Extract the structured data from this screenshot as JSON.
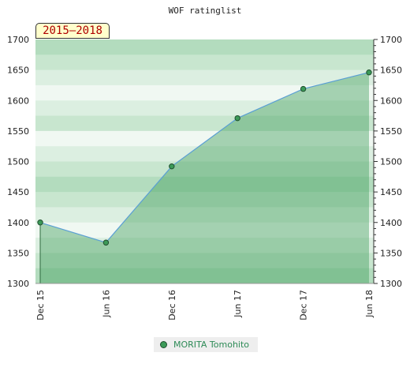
{
  "title": "WOF ratinglist",
  "period": "2015–2018",
  "colors": {
    "line": "#5a9fd4",
    "area": "#3c9a58",
    "marker_fill": "#3c9a58",
    "marker_stroke": "#1f4f2e",
    "badge_bg": "#ffffcc",
    "badge_text": "#b00000"
  },
  "chart_data": {
    "type": "area",
    "title": "WOF ratinglist",
    "x": [
      "Dec 15",
      "Jun 16",
      "Dec 16",
      "Jun 17",
      "Dec 17",
      "Jun 18"
    ],
    "series": [
      {
        "name": "MORITA Tomohito",
        "values": [
          1400,
          1367,
          1492,
          1571,
          1619,
          1646
        ]
      }
    ],
    "ylim": [
      1300,
      1700
    ],
    "yticks": [
      1300,
      1350,
      1400,
      1450,
      1500,
      1550,
      1600,
      1650,
      1700
    ],
    "y_axis_sides": [
      "left",
      "right"
    ],
    "xlabel": "",
    "ylabel": "",
    "grid": "horizontal bands",
    "legend": "bottom-center"
  }
}
